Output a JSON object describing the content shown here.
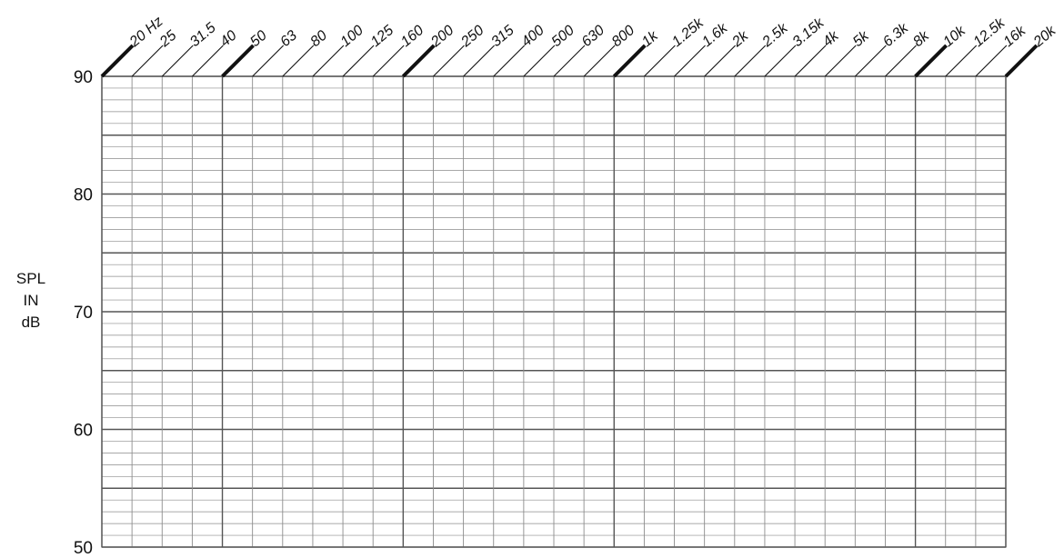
{
  "chart_data": {
    "type": "line",
    "title": "",
    "ylabel_lines": [
      "SPL",
      "IN",
      "dB"
    ],
    "x_scale": "log",
    "x_unit_label": "Hz",
    "x_ticks": [
      "20 Hz",
      "25",
      "31.5",
      "40",
      "50",
      "63",
      "80",
      "100",
      "125",
      "160",
      "200",
      "250",
      "315",
      "400",
      "500",
      "630",
      "800",
      "1k",
      "1.25k",
      "1.6k",
      "2k",
      "2.5k",
      "3.15k",
      "4k",
      "5k",
      "6.3k",
      "8k",
      "10k",
      "12.5k",
      "16k",
      "20k"
    ],
    "x_bold_ticks": [
      "20 Hz",
      "50",
      "200",
      "1k",
      "10k",
      "20k"
    ],
    "y_ticks": [
      "90",
      "80",
      "70",
      "60",
      "50"
    ],
    "ylim": [
      50,
      90
    ],
    "y_minor_step": 1,
    "y_major_step": 5,
    "grid": true,
    "series": []
  },
  "colors": {
    "grid": "#8c8c8c",
    "grid_major": "#555555",
    "text": "#111111"
  }
}
